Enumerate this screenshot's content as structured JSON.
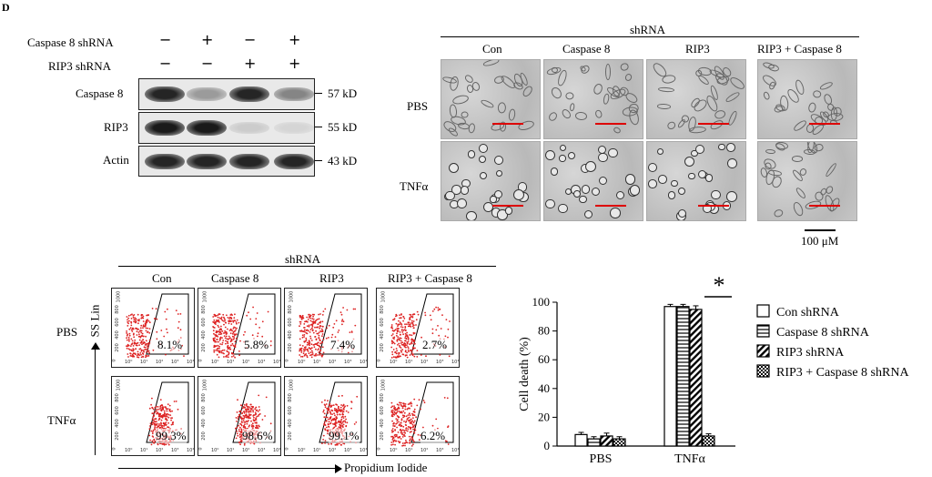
{
  "figure": {
    "panel_label": "D",
    "western": {
      "conditions": [
        {
          "label": "Caspase 8 shRNA",
          "marks": [
            "−",
            "+",
            "−",
            "+"
          ]
        },
        {
          "label": "RIP3 shRNA",
          "marks": [
            "−",
            "−",
            "+",
            "+"
          ]
        }
      ],
      "rows": [
        {
          "label": "Caspase 8",
          "mw": "57 kD",
          "intensity": [
            0.9,
            0.35,
            0.9,
            0.45
          ]
        },
        {
          "label": "RIP3",
          "mw": "55 kD",
          "intensity": [
            0.95,
            0.95,
            0.12,
            0.08
          ]
        },
        {
          "label": "Actin",
          "mw": "43 kD",
          "intensity": [
            0.9,
            0.9,
            0.9,
            0.9
          ]
        }
      ]
    },
    "microscopy": {
      "header": "shRNA",
      "columns": [
        "Con",
        "Caspase 8",
        "RIP3",
        "RIP3 + Caspase 8"
      ],
      "rows": [
        "PBS",
        "TNFα"
      ],
      "scale_label": "100 μM"
    },
    "flow": {
      "header": "shRNA",
      "columns": [
        "Con",
        "Caspase 8",
        "RIP3",
        "RIP3 + Caspase 8"
      ],
      "rows": [
        "PBS",
        "TNFα"
      ],
      "y_axis_label": "SS Lin",
      "x_axis_label": "Propidium Iodide",
      "y_ticks": [
        "0",
        "200",
        "400",
        "600",
        "800",
        "1000"
      ],
      "x_ticks": [
        "10⁰",
        "10¹",
        "10²",
        "10³",
        "10⁴"
      ],
      "percentages": [
        [
          "8.1%",
          "5.8%",
          "7.4%",
          "2.7%"
        ],
        [
          "99.3%",
          "98.6%",
          "99.1%",
          "6.2%"
        ]
      ]
    },
    "chart_data": {
      "type": "bar",
      "categories": [
        "PBS",
        "TNFα"
      ],
      "ylabel": "Cell death (%)",
      "ylim": [
        0,
        100
      ],
      "yticks": [
        "0",
        "20",
        "40",
        "60",
        "80",
        "100"
      ],
      "series": [
        {
          "name": "Con shRNA",
          "values": [
            8,
            97
          ],
          "errors": [
            1.5,
            1.5
          ],
          "pattern": "open"
        },
        {
          "name": "Caspase 8 shRNA",
          "values": [
            5,
            97
          ],
          "errors": [
            1.5,
            1.5
          ],
          "pattern": "hstripe"
        },
        {
          "name": "RIP3 shRNA",
          "values": [
            7,
            95
          ],
          "errors": [
            2,
            2.5
          ],
          "pattern": "diag"
        },
        {
          "name": "RIP3 + Caspase 8 shRNA",
          "values": [
            5,
            7
          ],
          "errors": [
            1.5,
            1.5
          ],
          "pattern": "check"
        }
      ],
      "significance": "*",
      "legend": "right"
    }
  }
}
